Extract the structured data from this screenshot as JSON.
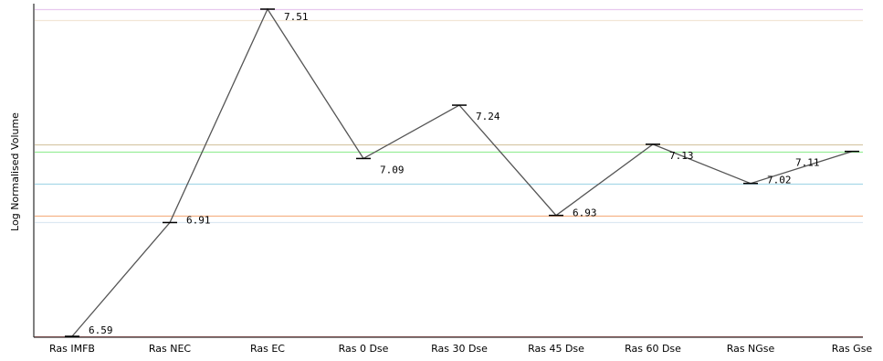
{
  "chart_data": {
    "type": "line",
    "title": "",
    "xlabel": "",
    "ylabel": "Log Normalised Volume",
    "ylim": [
      6.59,
      7.51
    ],
    "categories": [
      "Ras IMFB",
      "Ras NEC",
      "Ras EC",
      "Ras 0 Dse",
      "Ras 30 Dse",
      "Ras 45 Dse",
      "Ras 60 Dse",
      "Ras NGse",
      "Ras Gse"
    ],
    "values": [
      6.59,
      6.91,
      7.51,
      7.09,
      7.24,
      6.93,
      7.13,
      7.02,
      7.11
    ],
    "data_labels": [
      "6.59",
      "6.91",
      "7.51",
      "7.09",
      "7.24",
      "6.93",
      "7.13",
      "7.02",
      "7.11"
    ],
    "line_color": "#555555",
    "reference_lines": [
      {
        "value": 7.51,
        "color": "#e8c8ee"
      },
      {
        "value": 7.48,
        "color": "#f2e6d6"
      },
      {
        "value": 7.13,
        "color": "#d8c8a8"
      },
      {
        "value": 7.11,
        "color": "#99ee99"
      },
      {
        "value": 7.02,
        "color": "#a8d8e8"
      },
      {
        "value": 6.93,
        "color": "#f5b287"
      },
      {
        "value": 6.91,
        "color": "#dde8f2"
      },
      {
        "value": 6.59,
        "color": "#e89898"
      }
    ]
  }
}
